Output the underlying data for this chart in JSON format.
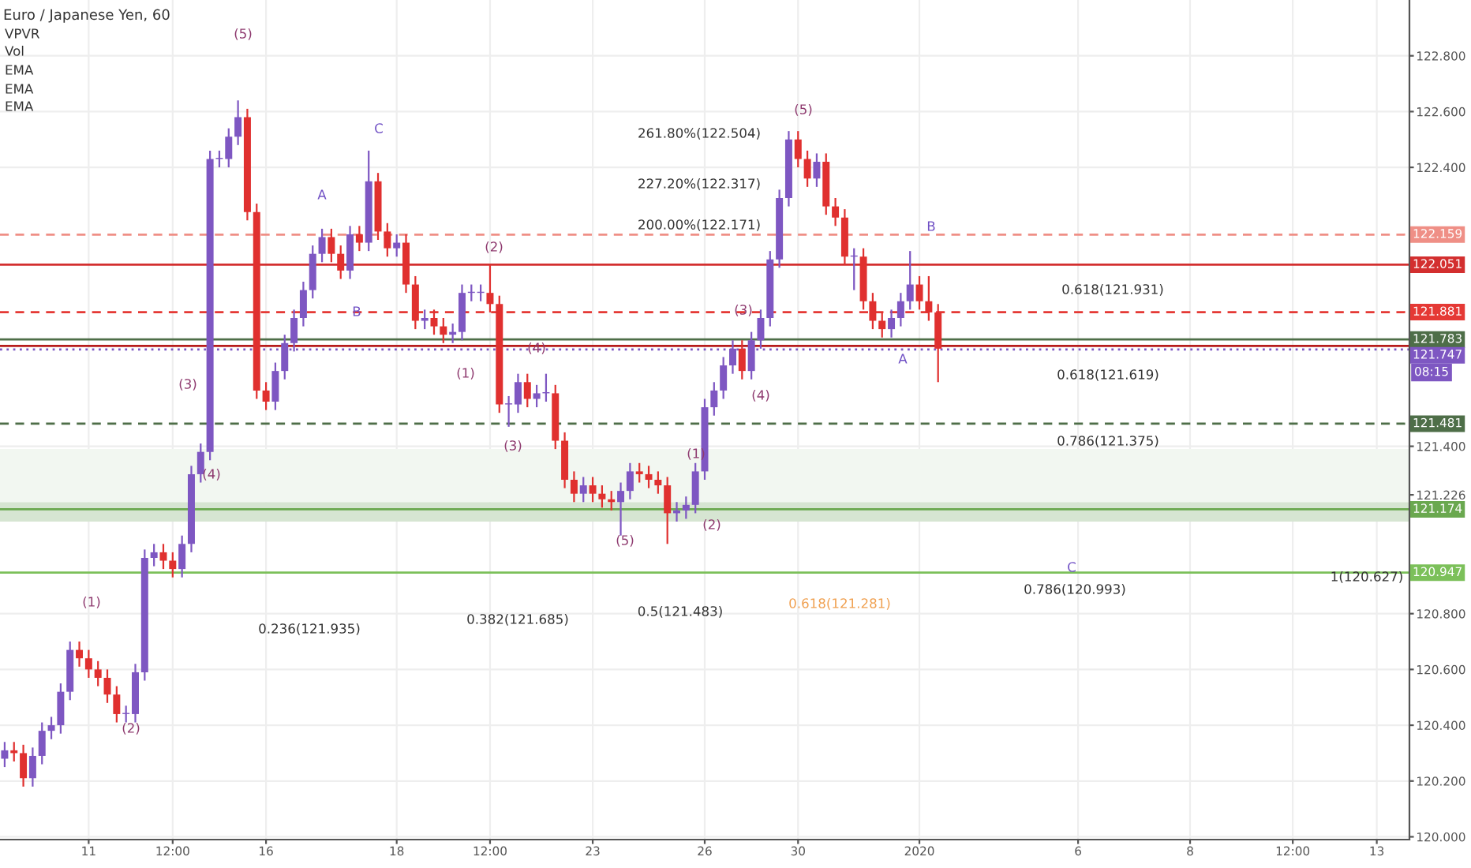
{
  "chart_data": {
    "type": "candlestick",
    "title": "Euro / Japanese Yen, 60",
    "categories": [
      null,
      null,
      null,
      null,
      null,
      null,
      null,
      null,
      null,
      "11",
      null,
      null,
      null,
      null,
      null,
      null,
      null,
      null,
      "12:00",
      null,
      null,
      null,
      null,
      null,
      null,
      null,
      null,
      null,
      "16",
      null,
      null,
      null,
      null,
      null,
      null,
      null,
      null,
      null,
      null,
      null,
      null,
      null,
      "18",
      null,
      null,
      null,
      null,
      null,
      null,
      null,
      null,
      null,
      "12:00",
      null,
      null,
      null,
      null,
      null,
      null,
      null,
      null,
      null,
      null,
      "23",
      null,
      null,
      null,
      null,
      null,
      null,
      null,
      null,
      null,
      null,
      null,
      "26",
      null,
      null,
      null,
      null,
      null,
      null,
      null,
      null,
      null,
      "30",
      null,
      null,
      null,
      null,
      null,
      null,
      null,
      null,
      null,
      null,
      null,
      null,
      "2020",
      null,
      null,
      null,
      null,
      null,
      null,
      null,
      null,
      null,
      null,
      null,
      null,
      null,
      null,
      null,
      null,
      "6",
      null,
      null,
      null,
      null,
      null,
      null,
      null,
      null,
      null,
      null,
      null,
      "8",
      null,
      null,
      null,
      null,
      null,
      null,
      null,
      null,
      null,
      null,
      "12:00",
      null,
      null,
      null,
      null,
      null,
      null,
      null,
      null,
      "13",
      null,
      null,
      null
    ],
    "ohlc": [
      [
        120.28,
        120.34,
        120.25,
        120.31
      ],
      [
        120.31,
        120.34,
        120.27,
        120.3
      ],
      [
        120.3,
        120.33,
        120.18,
        120.21
      ],
      [
        120.21,
        120.32,
        120.18,
        120.29
      ],
      [
        120.29,
        120.41,
        120.26,
        120.38
      ],
      [
        120.38,
        120.43,
        120.35,
        120.4
      ],
      [
        120.4,
        120.55,
        120.37,
        120.52
      ],
      [
        120.52,
        120.7,
        120.49,
        120.67
      ],
      [
        120.67,
        120.7,
        120.61,
        120.64
      ],
      [
        120.64,
        120.67,
        120.57,
        120.6
      ],
      [
        120.6,
        120.63,
        120.54,
        120.57
      ],
      [
        120.57,
        120.6,
        120.48,
        120.51
      ],
      [
        120.51,
        120.54,
        120.41,
        120.44
      ],
      [
        120.44,
        120.47,
        120.41,
        120.44
      ],
      [
        120.44,
        120.62,
        120.41,
        120.59
      ],
      [
        120.59,
        121.03,
        120.56,
        121.0
      ],
      [
        121.0,
        121.05,
        120.97,
        121.02
      ],
      [
        121.02,
        121.05,
        120.96,
        120.99
      ],
      [
        120.99,
        121.02,
        120.93,
        120.96
      ],
      [
        120.96,
        121.08,
        120.93,
        121.05
      ],
      [
        121.05,
        121.33,
        121.02,
        121.3
      ],
      [
        121.3,
        121.41,
        121.27,
        121.38
      ],
      [
        121.38,
        122.46,
        121.35,
        122.43
      ],
      [
        122.43,
        122.46,
        122.4,
        122.43
      ],
      [
        122.43,
        122.54,
        122.4,
        122.51
      ],
      [
        122.51,
        122.64,
        122.48,
        122.58
      ],
      [
        122.58,
        122.61,
        122.21,
        122.24
      ],
      [
        122.24,
        122.27,
        121.57,
        121.6
      ],
      [
        121.6,
        121.63,
        121.53,
        121.56
      ],
      [
        121.56,
        121.7,
        121.53,
        121.67
      ],
      [
        121.67,
        121.8,
        121.64,
        121.77
      ],
      [
        121.77,
        121.89,
        121.74,
        121.86
      ],
      [
        121.86,
        121.99,
        121.83,
        121.96
      ],
      [
        121.96,
        122.12,
        121.93,
        122.09
      ],
      [
        122.09,
        122.18,
        122.06,
        122.15
      ],
      [
        122.15,
        122.18,
        122.06,
        122.09
      ],
      [
        122.09,
        122.12,
        122.0,
        122.03
      ],
      [
        122.03,
        122.19,
        122.0,
        122.16
      ],
      [
        122.16,
        122.19,
        122.1,
        122.13
      ],
      [
        122.13,
        122.46,
        122.1,
        122.35
      ],
      [
        122.35,
        122.38,
        122.14,
        122.17
      ],
      [
        122.17,
        122.2,
        122.08,
        122.11
      ],
      [
        122.11,
        122.16,
        122.08,
        122.13
      ],
      [
        122.13,
        122.16,
        121.95,
        121.98
      ],
      [
        121.98,
        122.01,
        121.82,
        121.85
      ],
      [
        121.85,
        121.89,
        121.82,
        121.86
      ],
      [
        121.86,
        121.89,
        121.8,
        121.83
      ],
      [
        121.83,
        121.86,
        121.77,
        121.8
      ],
      [
        121.8,
        121.84,
        121.77,
        121.81
      ],
      [
        121.81,
        121.98,
        121.78,
        121.95
      ],
      [
        121.95,
        121.98,
        121.92,
        121.95
      ],
      [
        121.95,
        121.98,
        121.92,
        121.95
      ],
      [
        121.95,
        122.05,
        121.88,
        121.91
      ],
      [
        121.91,
        121.94,
        121.52,
        121.55
      ],
      [
        121.55,
        121.58,
        121.47,
        121.55
      ],
      [
        121.55,
        121.66,
        121.52,
        121.63
      ],
      [
        121.63,
        121.66,
        121.54,
        121.57
      ],
      [
        121.57,
        121.62,
        121.54,
        121.59
      ],
      [
        121.59,
        121.66,
        121.56,
        121.59
      ],
      [
        121.59,
        121.62,
        121.39,
        121.42
      ],
      [
        121.42,
        121.45,
        121.25,
        121.28
      ],
      [
        121.28,
        121.31,
        121.2,
        121.23
      ],
      [
        121.23,
        121.29,
        121.2,
        121.26
      ],
      [
        121.26,
        121.29,
        121.2,
        121.23
      ],
      [
        121.23,
        121.26,
        121.18,
        121.21
      ],
      [
        121.21,
        121.24,
        121.17,
        121.2
      ],
      [
        121.2,
        121.27,
        121.08,
        121.24
      ],
      [
        121.24,
        121.34,
        121.21,
        121.31
      ],
      [
        121.31,
        121.34,
        121.27,
        121.3
      ],
      [
        121.3,
        121.33,
        121.25,
        121.28
      ],
      [
        121.28,
        121.31,
        121.23,
        121.26
      ],
      [
        121.26,
        121.29,
        121.05,
        121.16
      ],
      [
        121.16,
        121.2,
        121.13,
        121.17
      ],
      [
        121.17,
        121.22,
        121.14,
        121.19
      ],
      [
        121.19,
        121.34,
        121.16,
        121.31
      ],
      [
        121.31,
        121.57,
        121.28,
        121.54
      ],
      [
        121.54,
        121.63,
        121.51,
        121.6
      ],
      [
        121.6,
        121.72,
        121.57,
        121.69
      ],
      [
        121.69,
        121.78,
        121.66,
        121.75
      ],
      [
        121.75,
        121.78,
        121.64,
        121.67
      ],
      [
        121.67,
        121.81,
        121.64,
        121.78
      ],
      [
        121.78,
        121.89,
        121.75,
        121.86
      ],
      [
        121.86,
        122.1,
        121.83,
        122.07
      ],
      [
        122.07,
        122.32,
        122.04,
        122.29
      ],
      [
        122.29,
        122.53,
        122.26,
        122.5
      ],
      [
        122.5,
        122.53,
        122.4,
        122.43
      ],
      [
        122.43,
        122.46,
        122.33,
        122.36
      ],
      [
        122.36,
        122.45,
        122.33,
        122.42
      ],
      [
        122.42,
        122.45,
        122.23,
        122.26
      ],
      [
        122.26,
        122.29,
        122.19,
        122.22
      ],
      [
        122.22,
        122.25,
        122.05,
        122.08
      ],
      [
        122.08,
        122.11,
        121.96,
        122.08
      ],
      [
        122.08,
        122.11,
        121.89,
        121.92
      ],
      [
        121.92,
        121.95,
        121.82,
        121.85
      ],
      [
        121.85,
        121.88,
        121.79,
        121.82
      ],
      [
        121.82,
        121.89,
        121.79,
        121.86
      ],
      [
        121.86,
        121.95,
        121.83,
        121.92
      ],
      [
        121.92,
        122.1,
        121.89,
        121.98
      ],
      [
        121.98,
        122.01,
        121.89,
        121.92
      ],
      [
        121.92,
        122.01,
        121.85,
        121.88
      ],
      [
        121.88,
        121.91,
        121.63,
        121.75
      ],
      null,
      null,
      null,
      null,
      null,
      null,
      null,
      null,
      null,
      null,
      null,
      null,
      null,
      null,
      null,
      null,
      null,
      null,
      null,
      null,
      null,
      null,
      null,
      null,
      null,
      null,
      null,
      null,
      null,
      null,
      null,
      null,
      null,
      null,
      null,
      null,
      null,
      null,
      null,
      null,
      null,
      null,
      null,
      null,
      null,
      null,
      null,
      null,
      null,
      null
    ],
    "ylim": [
      119.99,
      123.0
    ],
    "yticks": [
      {
        "value": 120.0,
        "label": "120.000"
      },
      {
        "value": 120.2,
        "label": "120.200"
      },
      {
        "value": 120.4,
        "label": "120.400"
      },
      {
        "value": 120.6,
        "label": "120.600"
      },
      {
        "value": 120.8,
        "label": "120.800"
      },
      {
        "value": 121.226,
        "label": "121.226"
      },
      {
        "value": 121.4,
        "label": "121.400"
      },
      {
        "value": 122.4,
        "label": "122.400"
      },
      {
        "value": 122.6,
        "label": "122.600"
      },
      {
        "value": 122.8,
        "label": "122.800"
      }
    ],
    "ref_lines": [
      {
        "axis": "y",
        "value": 122.159,
        "label": "122.159",
        "color": "#ef8f86",
        "line_style": "dashed"
      },
      {
        "axis": "y",
        "value": 122.051,
        "label": "122.051",
        "color": "#d32f2f",
        "line_style": "solid"
      },
      {
        "axis": "y",
        "value": 121.881,
        "label": "121.881",
        "color": "#e53935",
        "line_style": "dashed"
      },
      {
        "axis": "y",
        "value": 121.783,
        "label": "121.783",
        "color": "#4e6e48",
        "line_style": "solid"
      },
      {
        "axis": "y",
        "value": 121.76,
        "color": "#b71c1c",
        "line_style": "solid"
      },
      {
        "axis": "y",
        "value": 121.747,
        "label": "121.747",
        "color": "#7e57c2",
        "line_style": "dotted"
      },
      {
        "axis": "y",
        "value": 121.481,
        "label": "121.481",
        "color": "#4e6e48",
        "line_style": "dashed"
      },
      {
        "axis": "y",
        "value": 121.174,
        "label": "121.174",
        "color": "#6aa84f",
        "line_style": "solid"
      },
      {
        "axis": "y",
        "value": 120.947,
        "label": "120.947",
        "color": "#7cc05a",
        "line_style": "solid"
      }
    ],
    "bands": [
      {
        "axis": "y",
        "from": 121.13,
        "to": 121.2,
        "color": "#d6e5d2"
      },
      {
        "axis": "y",
        "from": 121.2,
        "to": 121.39,
        "color": "#f2f7f1"
      }
    ],
    "annotations": [
      "VPVR",
      "Vol",
      "EMA",
      "EMA",
      "EMA",
      "(1)",
      "(2)",
      "(3)",
      "(4)",
      "(5)",
      "A",
      "B",
      "C",
      "(2)",
      "(1)",
      "(4)",
      "(3)",
      "(5)",
      "(1)",
      "(2)",
      "(3)",
      "(4)",
      "(5)",
      "A",
      "B",
      "C",
      "261.80%(122.504)",
      "227.20%(122.317)",
      "200.00%(122.171)",
      "0.618(121.931)",
      "0.618(121.619)",
      "0.786(121.375)",
      "0.236(121.935)",
      "0.382(121.685)",
      "0.5(121.483)",
      "0.618(121.281)",
      "0.786(120.993)",
      "1(120.627)",
      "08:15"
    ],
    "grid": true
  }
}
